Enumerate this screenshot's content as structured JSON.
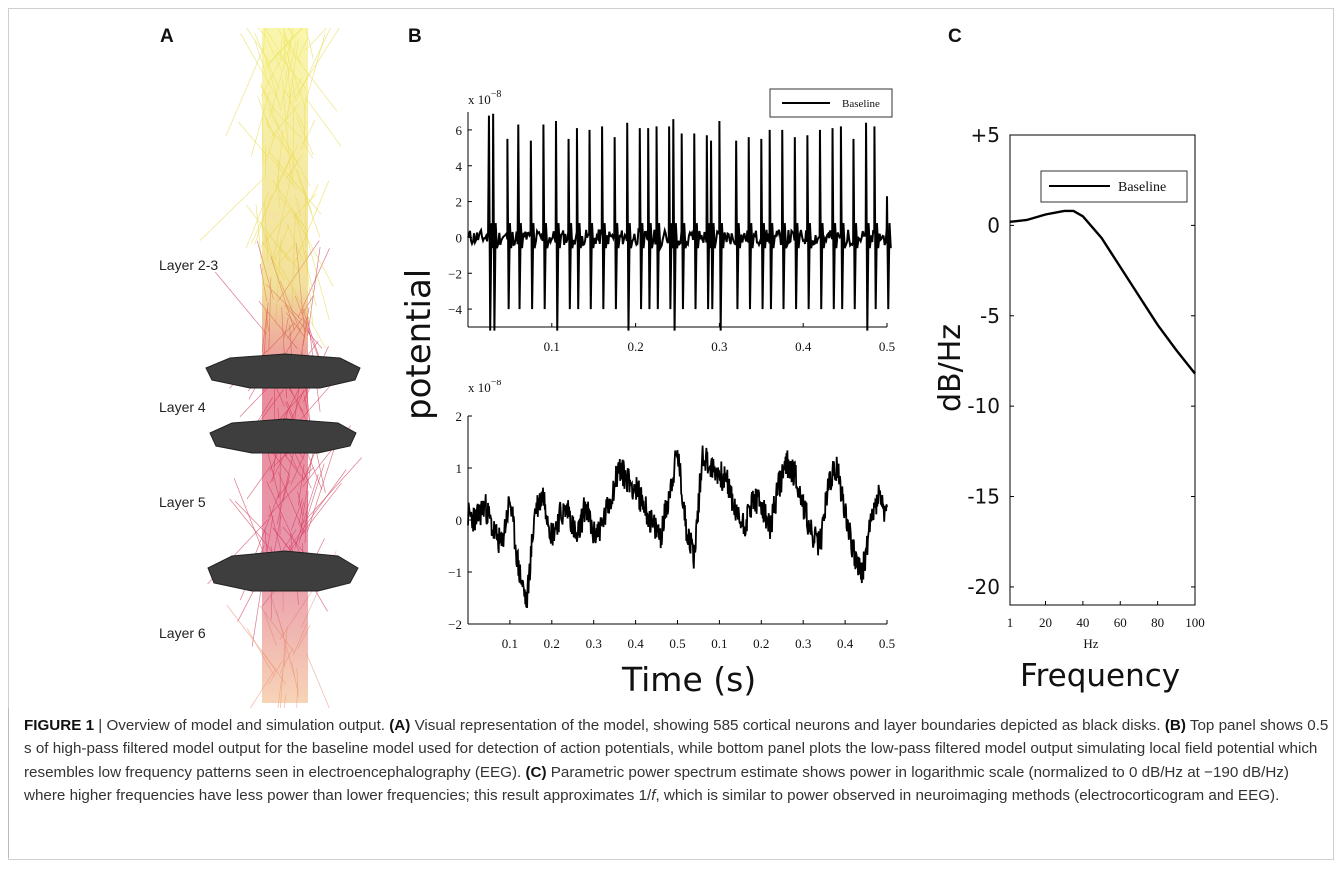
{
  "panels": {
    "a": "A",
    "b": "B",
    "c": "C"
  },
  "panel_a": {
    "layers": [
      "Layer 2-3",
      "Layer 4",
      "Layer 5",
      "Layer 6"
    ]
  },
  "chart_data": [
    {
      "type": "line",
      "panel": "B-top",
      "title": "",
      "xlabel": "",
      "ylabel": "",
      "exponent_label": "x 10",
      "exponent": "−8",
      "legend": [
        "Baseline"
      ],
      "legend_position": "top-right",
      "xlim": [
        0.0,
        0.5
      ],
      "ylim": [
        -5,
        7
      ],
      "xticks": [
        "0.1",
        "0.2",
        "0.3",
        "0.4",
        "0.5"
      ],
      "yticks": [
        "6",
        "4",
        "2",
        "0",
        "−2",
        "−4"
      ],
      "series": [
        {
          "name": "Baseline",
          "color": "#000000",
          "spike_times": [
            0.025,
            0.03,
            0.047,
            0.06,
            0.075,
            0.09,
            0.105,
            0.12,
            0.13,
            0.145,
            0.16,
            0.175,
            0.19,
            0.205,
            0.215,
            0.225,
            0.24,
            0.245,
            0.255,
            0.27,
            0.285,
            0.29,
            0.3,
            0.32,
            0.335,
            0.35,
            0.36,
            0.375,
            0.39,
            0.405,
            0.42,
            0.435,
            0.445,
            0.46,
            0.475,
            0.485,
            0.5
          ],
          "spike_peaks": [
            6.8,
            6.9,
            5.5,
            6.3,
            5.4,
            6.3,
            6.5,
            5.5,
            6.1,
            6.0,
            6.2,
            5.6,
            6.4,
            6.1,
            6.1,
            6.2,
            6.2,
            6.6,
            5.8,
            5.8,
            5.7,
            5.4,
            6.5,
            5.4,
            5.6,
            5.5,
            6.0,
            6.0,
            5.6,
            5.7,
            6.0,
            6.1,
            6.2,
            5.5,
            6.4,
            6.2,
            2.3
          ]
        }
      ]
    },
    {
      "type": "line",
      "panel": "B-bottom",
      "title": "",
      "xlabel": "Time (s)",
      "ylabel": "potential",
      "exponent_label": "x 10",
      "exponent": "−8",
      "xlim": [
        0.0,
        0.5
      ],
      "ylim": [
        -2,
        2
      ],
      "xticks": [
        "0.1",
        "0.2",
        "0.3",
        "0.4",
        "0.5",
        "0.1",
        "0.2",
        "0.3",
        "0.4",
        "0.5"
      ],
      "yticks": [
        "2",
        "1",
        "0",
        "−1",
        "−2"
      ],
      "series": [
        {
          "name": "",
          "color": "#000000",
          "x": [
            0.0,
            0.01,
            0.02,
            0.03,
            0.04,
            0.05,
            0.06,
            0.07,
            0.08,
            0.09,
            0.1,
            0.11,
            0.12,
            0.13,
            0.14,
            0.15,
            0.16,
            0.17,
            0.18,
            0.19,
            0.2,
            0.21,
            0.22,
            0.23,
            0.24,
            0.25,
            0.26,
            0.27,
            0.28,
            0.29,
            0.3,
            0.31,
            0.32,
            0.33,
            0.34,
            0.35,
            0.36,
            0.37,
            0.38,
            0.39,
            0.4,
            0.41,
            0.42,
            0.43,
            0.44,
            0.45,
            0.46,
            0.47,
            0.48,
            0.49,
            0.5
          ],
          "y": [
            0.1,
            0.0,
            0.3,
            -0.2,
            -0.5,
            0.4,
            -0.9,
            -1.6,
            0.2,
            0.5,
            -0.3,
            0.1,
            0.2,
            -0.4,
            0.3,
            -0.3,
            -0.1,
            0.4,
            1.0,
            0.8,
            0.6,
            0.3,
            -0.1,
            -0.3,
            0.5,
            1.3,
            -0.1,
            -0.7,
            1.3,
            1.0,
            0.9,
            0.7,
            0.1,
            -0.1,
            0.4,
            0.3,
            -0.2,
            0.6,
            1.1,
            0.9,
            0.3,
            -0.3,
            -0.5,
            0.7,
            1.0,
            0.2,
            -0.6,
            -1.1,
            -0.1,
            0.5,
            0.0
          ]
        }
      ]
    },
    {
      "type": "line",
      "panel": "C",
      "title": "",
      "xlabel": "Frequency",
      "xunit": "Hz",
      "ylabel": "dB/Hz",
      "legend": [
        "Baseline"
      ],
      "legend_position": "top-right",
      "xlim": [
        1,
        100
      ],
      "ylim": [
        -21,
        5
      ],
      "xticks": [
        "1",
        "20",
        "40",
        "60",
        "80",
        "100"
      ],
      "yticks": [
        "+5",
        "0",
        "-5",
        "-10",
        "-15",
        "-20"
      ],
      "series": [
        {
          "name": "Baseline",
          "color": "#000000",
          "x": [
            1,
            10,
            20,
            30,
            35,
            40,
            50,
            60,
            70,
            80,
            90,
            100
          ],
          "y": [
            0.2,
            0.3,
            0.6,
            0.8,
            0.8,
            0.5,
            -0.7,
            -2.3,
            -3.9,
            -5.5,
            -6.9,
            -8.2
          ]
        }
      ]
    }
  ],
  "caption": {
    "figure_label": "FIGURE 1",
    "separator": " | ",
    "intro": "Overview of model and simulation output. ",
    "a_label": "(A)",
    "a_text": " Visual representation of the model, showing 585 cortical neurons and layer boundaries depicted as black disks. ",
    "b_label": "(B)",
    "b_text": " Top panel shows 0.5 s of high-pass filtered model output for the baseline model used for detection of action potentials, while bottom panel plots the low-pass filtered model output simulating local field potential which resembles low frequency patterns seen in electroencephalography (EEG). ",
    "c_label": "(C)",
    "c_text_1": " Parametric power spectrum estimate shows power in logarithmic scale (normalized to 0 dB/Hz at −190 dB/Hz) where higher frequencies have less power than lower frequencies; this result approximates 1/",
    "c_text_f": "f",
    "c_text_2": ", which is similar to power observed in neuroimaging methods (electrocorticogram and EEG)."
  }
}
